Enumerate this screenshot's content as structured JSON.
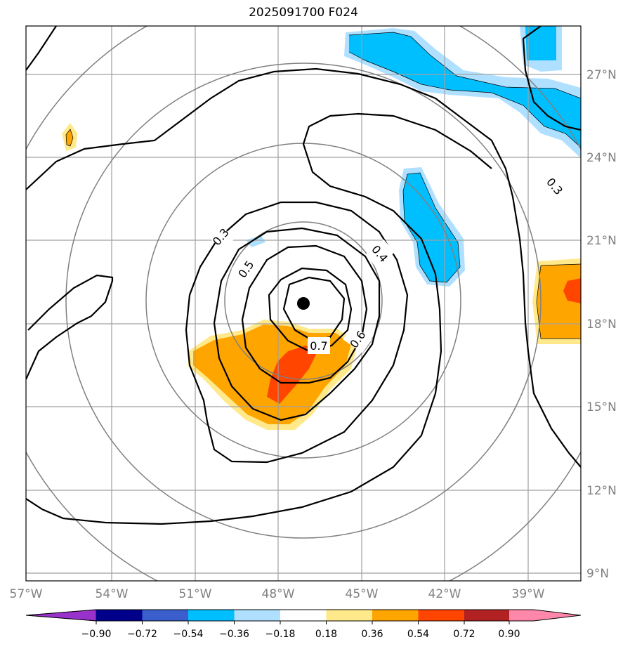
{
  "title": "2025091700 F024",
  "map": {
    "lon_labels": [
      "57°W",
      "54°W",
      "51°W",
      "48°W",
      "45°W",
      "42°W",
      "39°W"
    ],
    "lat_labels": [
      "27°N",
      "24°N",
      "21°N",
      "18°N",
      "15°N",
      "12°N",
      "9°N"
    ],
    "contour_labels": [
      "0.3",
      "0.3",
      "0.4",
      "0.5",
      "0.6",
      "0.7"
    ],
    "center_marker": {
      "lon": -47.1,
      "lat": 18.8
    },
    "colors": {
      "grid": "#a0a0a0",
      "range_rings": "#808080",
      "contours": "#000000",
      "neg_036_018": "#b0e0ff",
      "neg_054_036": "#00bfff",
      "pos_018_036": "#ffe98a",
      "pos_036_054": "#ffa500",
      "pos_054_072": "#ff4500"
    }
  },
  "colorbar": {
    "labels": [
      "−0.90",
      "−0.72",
      "−0.54",
      "−0.36",
      "−0.18",
      "0.18",
      "0.36",
      "0.54",
      "0.72",
      "0.90"
    ],
    "colors": [
      "#9932cc",
      "#00008b",
      "#3a5fcd",
      "#00bfff",
      "#b0e0ff",
      "#ffffff",
      "#ffe98a",
      "#ffa500",
      "#ff4500",
      "#b22222",
      "#ff88aa"
    ]
  }
}
